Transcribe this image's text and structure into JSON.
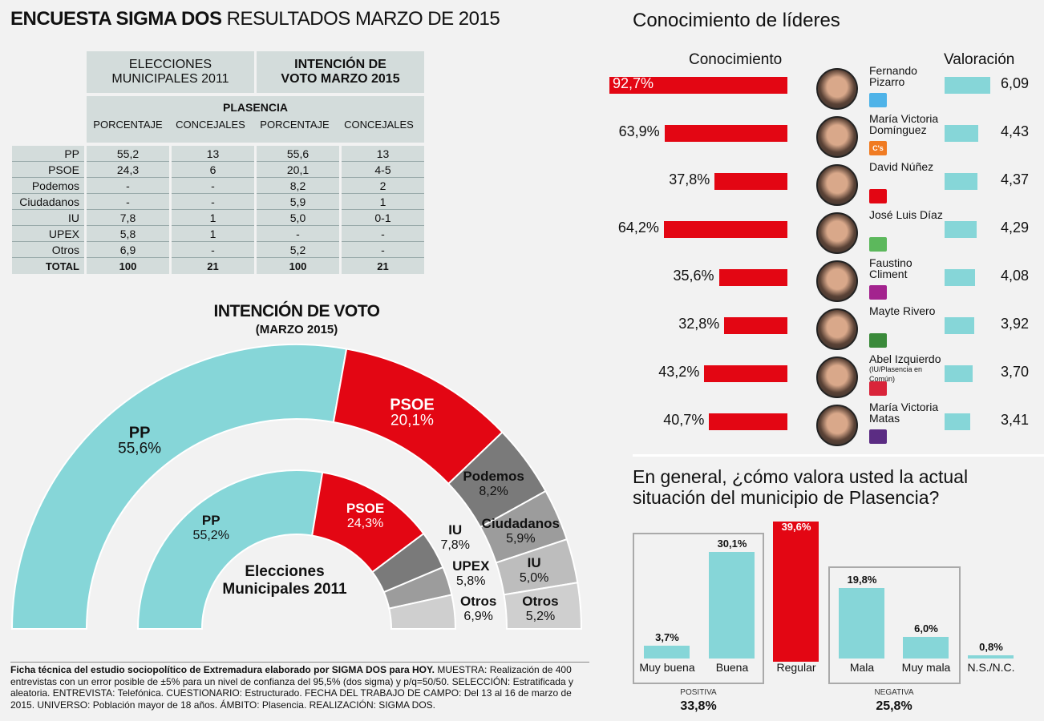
{
  "title": {
    "bold": "ENCUESTA SIGMA DOS",
    "rest": "RESULTADOS MARZO DE 2015"
  },
  "table": {
    "head_2011": "ELECCIONES MUNICIPALES 2011",
    "head_2015": "INTENCIÓN DE VOTO MARZO 2015",
    "place": "PLASENCIA",
    "col_pct": "PORCENTAJE",
    "col_conc": "CONCEJALES",
    "rows": [
      [
        "PP",
        "55,2",
        "13",
        "55,6",
        "13"
      ],
      [
        "PSOE",
        "24,3",
        "6",
        "20,1",
        "4-5"
      ],
      [
        "Podemos",
        "-",
        "-",
        "8,2",
        "2"
      ],
      [
        "Ciudadanos",
        "-",
        "-",
        "5,9",
        "1"
      ],
      [
        "IU",
        "7,8",
        "1",
        "5,0",
        "0-1"
      ],
      [
        "UPEX",
        "5,8",
        "1",
        "-",
        "-"
      ],
      [
        "Otros",
        "6,9",
        "-",
        "5,2",
        "-"
      ],
      [
        "TOTAL",
        "100",
        "21",
        "100",
        "21"
      ]
    ]
  },
  "chart_data": [
    {
      "type": "pie",
      "title": "INTENCIÓN DE VOTO",
      "subtitle": "(MARZO 2015)",
      "shape": "semicircle-outer",
      "series": [
        {
          "name": "PP",
          "value": 55.6,
          "label": "55,6%",
          "color": "#86d6d8"
        },
        {
          "name": "PSOE",
          "value": 20.1,
          "label": "20,1%",
          "color": "#e30613"
        },
        {
          "name": "Podemos",
          "value": 8.2,
          "label": "8,2%",
          "color": "#7a7a7a"
        },
        {
          "name": "Ciudadanos",
          "value": 5.9,
          "label": "5,9%",
          "color": "#9c9c9c"
        },
        {
          "name": "IU",
          "value": 5.0,
          "label": "5,0%",
          "color": "#bdbdbd"
        },
        {
          "name": "Otros",
          "value": 5.2,
          "label": "5,2%",
          "color": "#cfcfcf"
        }
      ]
    },
    {
      "type": "pie",
      "title": "Elecciones Municipales 2011",
      "shape": "semicircle-inner",
      "series": [
        {
          "name": "PP",
          "value": 55.2,
          "label": "55,2%",
          "color": "#86d6d8"
        },
        {
          "name": "PSOE",
          "value": 24.3,
          "label": "24,3%",
          "color": "#e30613"
        },
        {
          "name": "IU",
          "value": 7.8,
          "label": "7,8%",
          "color": "#7a7a7a"
        },
        {
          "name": "UPEX",
          "value": 5.8,
          "label": "5,8%",
          "color": "#9c9c9c"
        },
        {
          "name": "Otros",
          "value": 6.9,
          "label": "6,9%",
          "color": "#cfcfcf"
        }
      ]
    },
    {
      "type": "bar",
      "title": "Conocimiento de líderes",
      "col_known": "Conocimiento",
      "col_rating": "Valoración",
      "leaders": [
        {
          "name": "Fernando Pizarro",
          "known": 92.7,
          "known_label": "92,7%",
          "rating": 6.09,
          "rating_label": "6,09",
          "party": "PP",
          "logo_color": "#4fb3e8"
        },
        {
          "name": "María Victoria Domínguez",
          "known": 63.9,
          "known_label": "63,9%",
          "rating": 4.43,
          "rating_label": "4,43",
          "party": "C's",
          "logo_color": "#f07b22"
        },
        {
          "name": "David Núñez",
          "known": 37.8,
          "known_label": "37,8%",
          "rating": 4.37,
          "rating_label": "4,37",
          "party": "PSOE",
          "logo_color": "#e30613"
        },
        {
          "name": "José Luis Díaz",
          "known": 64.2,
          "known_label": "64,2%",
          "rating": 4.29,
          "rating_label": "4,29",
          "party": "UPEX",
          "logo_color": "#5cb85c"
        },
        {
          "name": "Faustino Climent",
          "known": 35.6,
          "known_label": "35,6%",
          "rating": 4.08,
          "rating_label": "4,08",
          "party": "upyd",
          "logo_color": "#a3238e"
        },
        {
          "name": "Mayte Rivero",
          "known": 32.8,
          "known_label": "32,8%",
          "rating": 3.92,
          "rating_label": "3,92",
          "party": "EU",
          "logo_color": "#3a8a3a"
        },
        {
          "name": "Abel Izquierdo",
          "note": "(IU/Plasencia en Común)",
          "known": 43.2,
          "known_label": "43,2%",
          "rating": 3.7,
          "rating_label": "3,70",
          "party": "IU",
          "logo_color": "#d9243a"
        },
        {
          "name": "María Victoria Matas",
          "known": 40.7,
          "known_label": "40,7%",
          "rating": 3.41,
          "rating_label": "3,41",
          "party": "Podemos",
          "logo_color": "#5b2c83"
        }
      ]
    },
    {
      "type": "bar",
      "title": "En general, ¿cómo valora usted la actual situación del municipio de Plasencia?",
      "categories": [
        "Muy buena",
        "Buena",
        "Regular",
        "Mala",
        "Muy mala",
        "N.S./N.C."
      ],
      "values": [
        3.7,
        30.1,
        39.6,
        19.8,
        6.0,
        0.8
      ],
      "labels": [
        "3,7%",
        "30,1%",
        "39,6%",
        "19,8%",
        "6,0%",
        "0,8%"
      ],
      "groups": [
        {
          "name": "POSITIVA",
          "value": "33,8%"
        },
        {
          "name": "NEGATIVA",
          "value": "25,8%"
        }
      ],
      "ylim": [
        0,
        40
      ]
    }
  ],
  "elec_label": "Elecciones Municipales 2011",
  "ficha": {
    "bold": "Ficha técnica del estudio sociopolítico de Extremadura elaborado por SIGMA DOS para HOY.",
    "text": " MUESTRA: Realización de 400 entrevistas con un error posible de ±5% para un nivel de confianza del 95,5% (dos sigma) y p/q=50/50. SELECCIÓN: Estratificada y aleatoria. ENTREVISTA: Telefónica. CUESTIONARIO: Estructurado. FECHA DEL TRABAJO DE CAMPO: Del 13 al 16 de marzo de 2015. UNIVERSO: Población mayor de 18 años. ÁMBITO: Plasencia. REALIZACIÓN: SIGMA DOS."
  }
}
